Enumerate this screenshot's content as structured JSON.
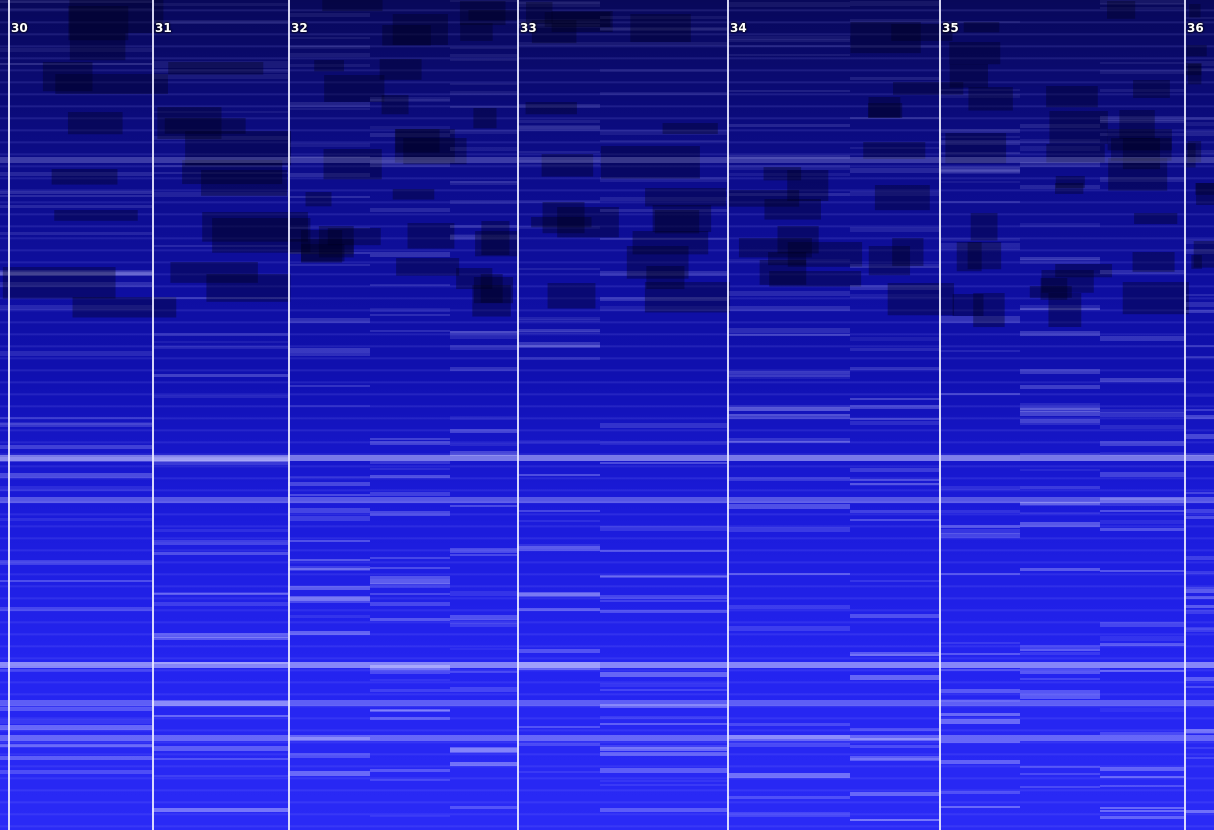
{
  "markers": [
    {
      "label": "30"
    },
    {
      "label": "31"
    },
    {
      "label": "32"
    },
    {
      "label": "33"
    },
    {
      "label": "34"
    },
    {
      "label": "35"
    },
    {
      "label": "36"
    }
  ]
}
